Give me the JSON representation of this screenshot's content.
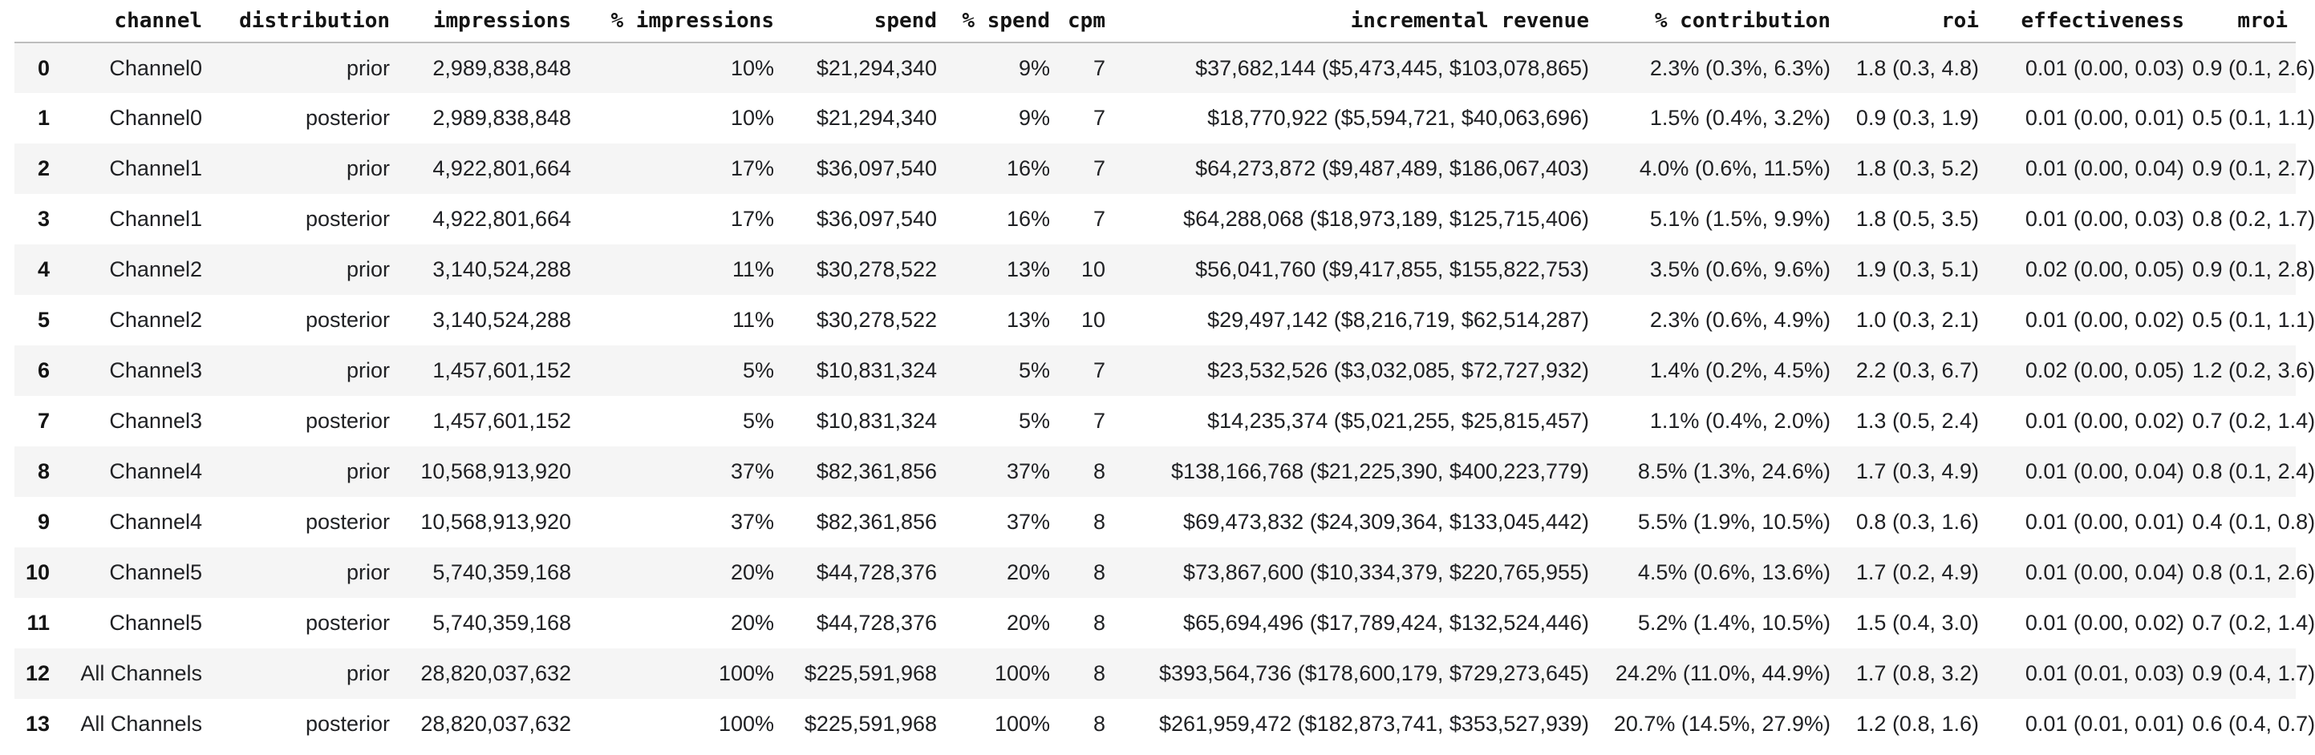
{
  "table": {
    "columns": [
      "",
      "channel",
      "distribution",
      "impressions",
      "% impressions",
      "spend",
      "% spend",
      "cpm",
      "incremental revenue",
      "% contribution",
      "roi",
      "effectiveness",
      "mroi"
    ],
    "rows": [
      [
        "0",
        "Channel0",
        "prior",
        "2,989,838,848",
        "10%",
        "$21,294,340",
        "9%",
        "7",
        "$37,682,144 ($5,473,445, $103,078,865)",
        "2.3% (0.3%, 6.3%)",
        "1.8 (0.3, 4.8)",
        "0.01 (0.00, 0.03)",
        "0.9 (0.1, 2.6)"
      ],
      [
        "1",
        "Channel0",
        "posterior",
        "2,989,838,848",
        "10%",
        "$21,294,340",
        "9%",
        "7",
        "$18,770,922 ($5,594,721, $40,063,696)",
        "1.5% (0.4%, 3.2%)",
        "0.9 (0.3, 1.9)",
        "0.01 (0.00, 0.01)",
        "0.5 (0.1, 1.1)"
      ],
      [
        "2",
        "Channel1",
        "prior",
        "4,922,801,664",
        "17%",
        "$36,097,540",
        "16%",
        "7",
        "$64,273,872 ($9,487,489, $186,067,403)",
        "4.0% (0.6%, 11.5%)",
        "1.8 (0.3, 5.2)",
        "0.01 (0.00, 0.04)",
        "0.9 (0.1, 2.7)"
      ],
      [
        "3",
        "Channel1",
        "posterior",
        "4,922,801,664",
        "17%",
        "$36,097,540",
        "16%",
        "7",
        "$64,288,068 ($18,973,189, $125,715,406)",
        "5.1% (1.5%, 9.9%)",
        "1.8 (0.5, 3.5)",
        "0.01 (0.00, 0.03)",
        "0.8 (0.2, 1.7)"
      ],
      [
        "4",
        "Channel2",
        "prior",
        "3,140,524,288",
        "11%",
        "$30,278,522",
        "13%",
        "10",
        "$56,041,760 ($9,417,855, $155,822,753)",
        "3.5% (0.6%, 9.6%)",
        "1.9 (0.3, 5.1)",
        "0.02 (0.00, 0.05)",
        "0.9 (0.1, 2.8)"
      ],
      [
        "5",
        "Channel2",
        "posterior",
        "3,140,524,288",
        "11%",
        "$30,278,522",
        "13%",
        "10",
        "$29,497,142 ($8,216,719, $62,514,287)",
        "2.3% (0.6%, 4.9%)",
        "1.0 (0.3, 2.1)",
        "0.01 (0.00, 0.02)",
        "0.5 (0.1, 1.1)"
      ],
      [
        "6",
        "Channel3",
        "prior",
        "1,457,601,152",
        "5%",
        "$10,831,324",
        "5%",
        "7",
        "$23,532,526 ($3,032,085, $72,727,932)",
        "1.4% (0.2%, 4.5%)",
        "2.2 (0.3, 6.7)",
        "0.02 (0.00, 0.05)",
        "1.2 (0.2, 3.6)"
      ],
      [
        "7",
        "Channel3",
        "posterior",
        "1,457,601,152",
        "5%",
        "$10,831,324",
        "5%",
        "7",
        "$14,235,374 ($5,021,255, $25,815,457)",
        "1.1% (0.4%, 2.0%)",
        "1.3 (0.5, 2.4)",
        "0.01 (0.00, 0.02)",
        "0.7 (0.2, 1.4)"
      ],
      [
        "8",
        "Channel4",
        "prior",
        "10,568,913,920",
        "37%",
        "$82,361,856",
        "37%",
        "8",
        "$138,166,768 ($21,225,390, $400,223,779)",
        "8.5% (1.3%, 24.6%)",
        "1.7 (0.3, 4.9)",
        "0.01 (0.00, 0.04)",
        "0.8 (0.1, 2.4)"
      ],
      [
        "9",
        "Channel4",
        "posterior",
        "10,568,913,920",
        "37%",
        "$82,361,856",
        "37%",
        "8",
        "$69,473,832 ($24,309,364, $133,045,442)",
        "5.5% (1.9%, 10.5%)",
        "0.8 (0.3, 1.6)",
        "0.01 (0.00, 0.01)",
        "0.4 (0.1, 0.8)"
      ],
      [
        "10",
        "Channel5",
        "prior",
        "5,740,359,168",
        "20%",
        "$44,728,376",
        "20%",
        "8",
        "$73,867,600 ($10,334,379, $220,765,955)",
        "4.5% (0.6%, 13.6%)",
        "1.7 (0.2, 4.9)",
        "0.01 (0.00, 0.04)",
        "0.8 (0.1, 2.6)"
      ],
      [
        "11",
        "Channel5",
        "posterior",
        "5,740,359,168",
        "20%",
        "$44,728,376",
        "20%",
        "8",
        "$65,694,496 ($17,789,424, $132,524,446)",
        "5.2% (1.4%, 10.5%)",
        "1.5 (0.4, 3.0)",
        "0.01 (0.00, 0.02)",
        "0.7 (0.2, 1.4)"
      ],
      [
        "12",
        "All Channels",
        "prior",
        "28,820,037,632",
        "100%",
        "$225,591,968",
        "100%",
        "8",
        "$393,564,736 ($178,600,179, $729,273,645)",
        "24.2% (11.0%, 44.9%)",
        "1.7 (0.8, 3.2)",
        "0.01 (0.01, 0.03)",
        "0.9 (0.4, 1.7)"
      ],
      [
        "13",
        "All Channels",
        "posterior",
        "28,820,037,632",
        "100%",
        "$225,591,968",
        "100%",
        "8",
        "$261,959,472 ($182,873,741, $353,527,939)",
        "20.7% (14.5%, 27.9%)",
        "1.2 (0.8, 1.6)",
        "0.01 (0.01, 0.01)",
        "0.6 (0.4, 0.7)"
      ]
    ],
    "styles": {
      "stripe_color": "#f5f5f5",
      "header_border_color": "#bdbdbd",
      "text_color": "#202124"
    }
  }
}
